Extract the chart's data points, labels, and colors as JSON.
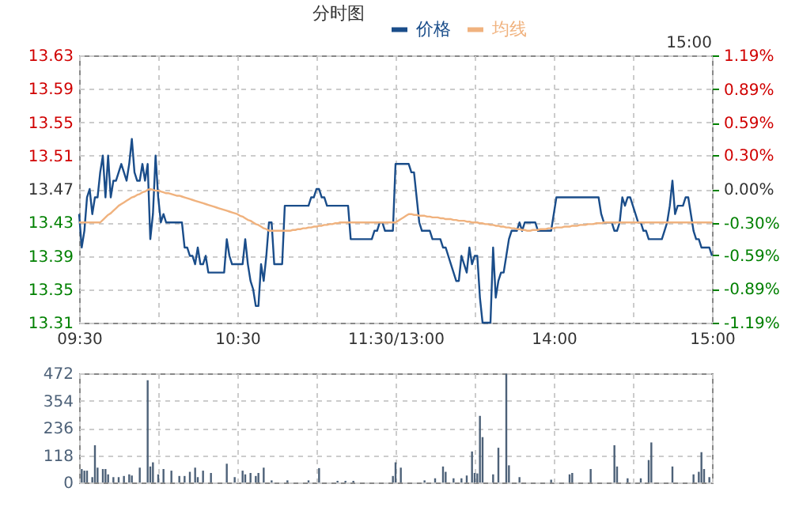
{
  "chart_data": [
    {
      "type": "line",
      "title": "分时图",
      "annotations": [
        "15:00"
      ],
      "legend": "top",
      "grid": true,
      "categories": [
        "09:30",
        null,
        null,
        null,
        null,
        null,
        null,
        null,
        null,
        null,
        null,
        null,
        null,
        null,
        null,
        null,
        null,
        null,
        null,
        null,
        null,
        null,
        null,
        null,
        null,
        null,
        null,
        null,
        null,
        null,
        null,
        null,
        null,
        null,
        null,
        null,
        null,
        null,
        null,
        null,
        null,
        null,
        null,
        null,
        null,
        null,
        null,
        null,
        null,
        null,
        null,
        null,
        null,
        null,
        null,
        null,
        null,
        null,
        null,
        null,
        "10:30",
        null,
        null,
        null,
        null,
        null,
        null,
        null,
        null,
        null,
        null,
        null,
        null,
        null,
        null,
        null,
        null,
        null,
        null,
        null,
        null,
        null,
        null,
        null,
        null,
        null,
        null,
        null,
        null,
        null,
        null,
        null,
        null,
        null,
        null,
        null,
        null,
        null,
        null,
        null,
        null,
        null,
        null,
        null,
        null,
        null,
        null,
        null,
        null,
        null,
        null,
        null,
        null,
        null,
        null,
        null,
        null,
        null,
        null,
        null,
        "11:30/13:00",
        null,
        null,
        null,
        null,
        null,
        null,
        null,
        null,
        null,
        null,
        null,
        null,
        null,
        null,
        null,
        null,
        null,
        null,
        null,
        null,
        null,
        null,
        null,
        null,
        null,
        null,
        null,
        null,
        null,
        null,
        null,
        null,
        null,
        null,
        null,
        null,
        null,
        null,
        null,
        null,
        null,
        null,
        null,
        null,
        null,
        null,
        null,
        null,
        null,
        null,
        null,
        null,
        null,
        null,
        null,
        null,
        null,
        null,
        null,
        "14:00",
        null,
        null,
        null,
        null,
        null,
        null,
        null,
        null,
        null,
        null,
        null,
        null,
        null,
        null,
        null,
        null,
        null,
        null,
        null,
        null,
        null,
        null,
        null,
        null,
        null,
        null,
        null,
        null,
        null,
        null,
        null,
        null,
        null,
        null,
        null,
        null,
        null,
        null,
        null,
        null,
        null,
        null,
        null,
        null,
        null,
        null,
        null,
        null,
        null,
        null,
        null,
        null,
        null,
        null,
        null,
        null,
        null,
        null,
        null,
        "15:00"
      ],
      "ylim": [
        13.31,
        13.63
      ],
      "yticks": [
        13.31,
        13.35,
        13.39,
        13.43,
        13.47,
        13.51,
        13.55,
        13.59,
        13.63
      ],
      "y2lim": [
        -1.19,
        1.19
      ],
      "y2ticks": [
        {
          "value": -1.19,
          "label": "-1.19%"
        },
        {
          "value": -0.89,
          "label": "-0.89%"
        },
        {
          "value": -0.59,
          "label": "-0.59%"
        },
        {
          "value": -0.3,
          "label": "-0.30%"
        },
        {
          "value": 0,
          "label": "0.00%"
        },
        {
          "value": 0.3,
          "label": "0.30%"
        },
        {
          "value": 0.59,
          "label": "0.59%"
        },
        {
          "value": 0.89,
          "label": "0.89%"
        },
        {
          "value": 1.19,
          "label": "1.19%"
        }
      ],
      "series": [
        {
          "name": "价格",
          "color": "#1a4d8a",
          "values": [
            13.44,
            13.4,
            13.42,
            13.46,
            13.47,
            13.44,
            13.46,
            13.46,
            13.49,
            13.51,
            13.46,
            13.51,
            13.46,
            13.48,
            13.48,
            13.49,
            13.5,
            13.49,
            13.48,
            13.5,
            13.53,
            13.49,
            13.48,
            13.48,
            13.5,
            13.48,
            13.5,
            13.41,
            13.44,
            13.51,
            13.46,
            13.43,
            13.44,
            13.43,
            13.43,
            13.43,
            13.43,
            13.43,
            13.43,
            13.43,
            13.4,
            13.4,
            13.39,
            13.39,
            13.38,
            13.4,
            13.38,
            13.38,
            13.39,
            13.37,
            13.37,
            13.37,
            13.37,
            13.37,
            13.37,
            13.37,
            13.41,
            13.39,
            13.38,
            13.38,
            13.38,
            13.38,
            13.38,
            13.41,
            13.38,
            13.36,
            13.35,
            13.33,
            13.33,
            13.38,
            13.36,
            13.39,
            13.43,
            13.43,
            13.38,
            13.38,
            13.38,
            13.38,
            13.45,
            13.45,
            13.45,
            13.45,
            13.45,
            13.45,
            13.45,
            13.45,
            13.45,
            13.45,
            13.46,
            13.46,
            13.47,
            13.47,
            13.46,
            13.46,
            13.45,
            13.45,
            13.45,
            13.45,
            13.45,
            13.45,
            13.45,
            13.45,
            13.45,
            13.41,
            13.41,
            13.41,
            13.41,
            13.41,
            13.41,
            13.41,
            13.41,
            13.41,
            13.42,
            13.42,
            13.43,
            13.43,
            13.42,
            13.42,
            13.42,
            13.42,
            13.5,
            13.5,
            13.5,
            13.5,
            13.5,
            13.5,
            13.49,
            13.49,
            13.46,
            13.43,
            13.42,
            13.42,
            13.42,
            13.42,
            13.41,
            13.41,
            13.41,
            13.41,
            13.4,
            13.4,
            13.39,
            13.38,
            13.37,
            13.36,
            13.36,
            13.39,
            13.38,
            13.37,
            13.4,
            13.38,
            13.39,
            13.39,
            13.34,
            13.31,
            13.31,
            13.31,
            13.31,
            13.4,
            13.34,
            13.36,
            13.37,
            13.37,
            13.39,
            13.41,
            13.42,
            13.42,
            13.42,
            13.43,
            13.42,
            13.43,
            13.43,
            13.43,
            13.43,
            13.43,
            13.42,
            13.42,
            13.42,
            13.42,
            13.42,
            13.42,
            13.44,
            13.46,
            13.46,
            13.46,
            13.46,
            13.46,
            13.46,
            13.46,
            13.46,
            13.46,
            13.46,
            13.46,
            13.46,
            13.46,
            13.46,
            13.46,
            13.46,
            13.46,
            13.44,
            13.43,
            13.43,
            13.43,
            13.43,
            13.42,
            13.42,
            13.43,
            13.46,
            13.45,
            13.46,
            13.46,
            13.45,
            13.44,
            13.43,
            13.43,
            13.42,
            13.42,
            13.41,
            13.41,
            13.41,
            13.41,
            13.41,
            13.41,
            13.42,
            13.43,
            13.45,
            13.48,
            13.44,
            13.45,
            13.45,
            13.45,
            13.46,
            13.46,
            13.44,
            13.42,
            13.41,
            13.41,
            13.4,
            13.4,
            13.4,
            13.4,
            13.39
          ]
        },
        {
          "name": "均线",
          "color": "#f0b27e",
          "values": [
            13.43,
            13.43,
            13.43,
            13.43,
            13.43,
            13.43,
            13.43,
            13.43,
            13.43,
            13.433,
            13.436,
            13.439,
            13.441,
            13.444,
            13.447,
            13.45,
            13.452,
            13.454,
            13.456,
            13.458,
            13.46,
            13.461,
            13.463,
            13.464,
            13.466,
            13.467,
            13.469,
            13.47,
            13.469,
            13.468,
            13.468,
            13.467,
            13.466,
            13.465,
            13.465,
            13.464,
            13.463,
            13.462,
            13.462,
            13.461,
            13.46,
            13.459,
            13.458,
            13.457,
            13.456,
            13.455,
            13.454,
            13.453,
            13.452,
            13.451,
            13.45,
            13.449,
            13.448,
            13.447,
            13.446,
            13.445,
            13.444,
            13.443,
            13.442,
            13.441,
            13.44,
            13.438,
            13.437,
            13.435,
            13.433,
            13.432,
            13.43,
            13.428,
            13.427,
            13.425,
            13.423,
            13.422,
            13.42,
            13.42,
            13.42,
            13.42,
            13.42,
            13.42,
            13.42,
            13.42,
            13.42,
            13.421,
            13.421,
            13.422,
            13.422,
            13.423,
            13.423,
            13.424,
            13.424,
            13.425,
            13.425,
            13.426,
            13.426,
            13.427,
            13.427,
            13.428,
            13.428,
            13.429,
            13.429,
            13.43,
            13.43,
            13.43,
            13.43,
            13.43,
            13.43,
            13.43,
            13.43,
            13.43,
            13.43,
            13.43,
            13.43,
            13.43,
            13.43,
            13.43,
            13.43,
            13.43,
            13.43,
            13.43,
            13.43,
            13.43,
            13.43,
            13.432,
            13.434,
            13.436,
            13.438,
            13.44,
            13.44,
            13.439,
            13.439,
            13.438,
            13.438,
            13.438,
            13.437,
            13.437,
            13.436,
            13.436,
            13.436,
            13.435,
            13.435,
            13.434,
            13.434,
            13.434,
            13.433,
            13.433,
            13.432,
            13.432,
            13.432,
            13.431,
            13.431,
            13.43,
            13.43,
            13.43,
            13.429,
            13.429,
            13.428,
            13.428,
            13.427,
            13.427,
            13.426,
            13.426,
            13.425,
            13.425,
            13.424,
            13.424,
            13.423,
            13.423,
            13.422,
            13.422,
            13.421,
            13.421,
            13.42,
            13.42,
            13.421,
            13.421,
            13.421,
            13.422,
            13.422,
            13.422,
            13.423,
            13.423,
            13.423,
            13.424,
            13.424,
            13.424,
            13.425,
            13.425,
            13.425,
            13.426,
            13.426,
            13.426,
            13.427,
            13.427,
            13.427,
            13.428,
            13.428,
            13.428,
            13.429,
            13.429,
            13.429,
            13.43,
            13.43,
            13.43,
            13.43,
            13.43,
            13.43,
            13.43,
            13.43,
            13.43,
            13.43,
            13.43,
            13.43,
            13.43,
            13.43,
            13.43,
            13.43,
            13.43,
            13.43,
            13.43,
            13.43,
            13.43,
            13.43,
            13.43,
            13.43,
            13.43,
            13.43,
            13.43,
            13.43,
            13.43,
            13.43,
            13.43,
            13.43,
            13.43,
            13.43,
            13.43,
            13.43,
            13.43,
            13.43,
            13.43,
            13.43,
            13.43,
            13.43
          ]
        }
      ]
    },
    {
      "type": "bar",
      "grid": true,
      "tick_labels": "y",
      "categories": [
        null,
        null,
        null,
        null,
        null,
        null,
        null,
        null,
        null,
        null,
        null,
        null,
        null,
        null,
        null,
        null,
        null,
        null,
        null,
        null,
        null,
        null,
        null,
        null,
        null,
        null,
        null,
        null,
        null,
        null,
        null,
        null,
        null,
        null,
        null,
        null,
        null,
        null,
        null,
        null,
        null,
        null,
        null,
        null,
        null,
        null,
        null,
        null,
        null,
        null,
        null,
        null,
        null,
        null,
        null,
        null,
        null,
        null,
        null,
        null,
        null,
        null,
        null,
        null,
        null,
        null,
        null,
        null,
        null,
        null,
        null,
        null,
        null,
        null,
        null,
        null,
        null,
        null,
        null,
        null,
        null,
        null,
        null,
        null,
        null,
        null,
        null,
        null,
        null,
        null,
        null,
        null,
        null,
        null,
        null,
        null,
        null,
        null,
        null,
        null,
        null,
        null,
        null,
        null,
        null,
        null,
        null,
        null,
        null,
        null,
        null,
        null,
        null,
        null,
        null,
        null,
        null,
        null,
        null,
        null,
        null,
        null,
        null,
        null,
        null,
        null,
        null,
        null,
        null,
        null,
        null,
        null,
        null,
        null,
        null,
        null,
        null,
        null,
        null,
        null,
        null,
        null,
        null,
        null,
        null,
        null,
        null,
        null,
        null,
        null,
        null,
        null,
        null,
        null,
        null,
        null,
        null,
        null,
        null,
        null,
        null,
        null,
        null,
        null,
        null,
        null,
        null,
        null,
        null,
        null,
        null,
        null,
        null,
        null,
        null,
        null,
        null,
        null,
        null,
        null,
        null,
        null,
        null,
        null,
        null,
        null,
        null,
        null,
        null,
        null,
        null,
        null,
        null,
        null,
        null,
        null,
        null,
        null,
        null,
        null,
        null,
        null,
        null,
        null,
        null,
        null,
        null,
        null,
        null,
        null,
        null,
        null,
        null,
        null,
        null,
        null,
        null,
        null,
        null,
        null,
        null,
        null,
        null,
        null,
        null,
        null,
        null,
        null,
        null,
        null,
        null,
        null,
        null,
        null,
        null,
        null,
        null,
        null,
        null,
        null,
        null
      ],
      "ylim": [
        0,
        472
      ],
      "yticks": [
        0,
        118,
        236,
        354,
        472
      ],
      "series": [
        {
          "color": "#4d6178",
          "values": [
            null,
            58,
            51,
            51,
            null,
            23,
            161,
            64,
            null,
            58,
            58,
            35,
            null,
            23,
            null,
            23,
            null,
            28,
            null,
            35,
            30,
            null,
            null,
            64,
            null,
            null,
            442,
            69,
            87,
            null,
            35,
            null,
            58,
            null,
            null,
            51,
            null,
            null,
            28,
            null,
            28,
            null,
            46,
            null,
            64,
            23,
            null,
            51,
            null,
            null,
            41,
            null,
            null,
            null,
            null,
            null,
            81,
            null,
            null,
            23,
            null,
            null,
            51,
            35,
            null,
            41,
            null,
            28,
            41,
            null,
            64,
            null,
            null,
            9,
            null,
            null,
            null,
            null,
            null,
            9,
            null,
            null,
            null,
            null,
            null,
            null,
            null,
            9,
            null,
            null,
            null,
            62,
            null,
            null,
            null,
            null,
            null,
            null,
            7,
            null,
            null,
            7,
            null,
            null,
            7,
            null,
            null,
            null,
            null,
            null,
            null,
            null,
            null,
            null,
            null,
            null,
            null,
            null,
            null,
            28,
            87,
            null,
            64,
            null,
            null,
            null,
            null,
            null,
            null,
            null,
            null,
            9,
            null,
            null,
            null,
            18,
            null,
            null,
            69,
            46,
            null,
            null,
            18,
            null,
            null,
            18,
            null,
            30,
            null,
            134,
            41,
            39,
            288,
            196,
            null,
            null,
            null,
            35,
            null,
            150,
            null,
            null,
            470,
            74,
            null,
            null,
            null,
            23,
            null,
            null,
            null,
            null,
            null,
            null,
            null,
            null,
            null,
            null,
            null,
            12,
            null,
            null,
            null,
            null,
            null,
            null,
            35,
            41,
            null,
            null,
            null,
            null,
            null,
            null,
            58,
            null,
            null,
            null,
            null,
            null,
            null,
            null,
            null,
            161,
            69,
            null,
            null,
            null,
            18,
            null,
            null,
            null,
            null,
            18,
            null,
            null,
            97,
            173,
            null,
            null,
            null,
            null,
            null,
            null,
            null,
            69,
            null,
            null,
            null,
            null,
            null,
            null,
            null,
            35,
            null,
            46,
            131,
            58,
            null,
            23,
            null
          ]
        }
      ]
    }
  ]
}
